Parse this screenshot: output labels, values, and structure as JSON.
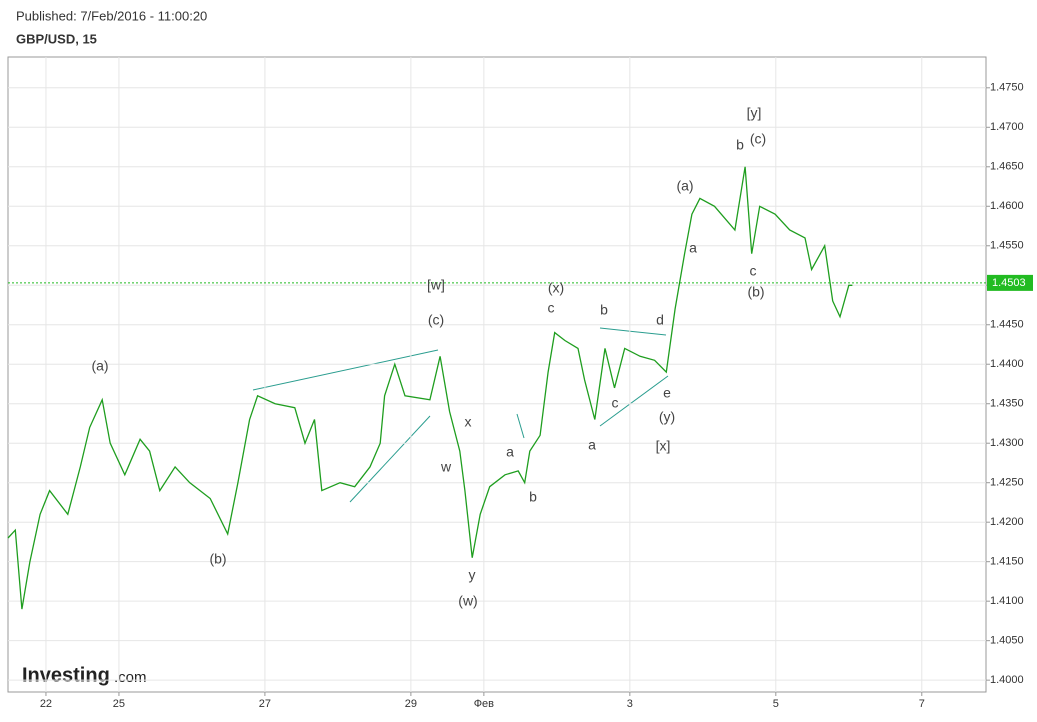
{
  "header": {
    "published": "Published: 7/Feb/2016 - 11:00:20",
    "symbol": "GBP/USD, 15"
  },
  "logo": {
    "brand": "Investing",
    "suffix": ".com"
  },
  "chart_data": {
    "type": "line",
    "color": "#1f9e1f",
    "x": [
      -0.52,
      -0.42,
      -0.33,
      -0.22,
      -0.08,
      0.05,
      0.3,
      0.47,
      0.6,
      0.77,
      0.88,
      1.08,
      1.29,
      1.42,
      1.56,
      1.77,
      1.97,
      2.25,
      2.49,
      2.63,
      2.79,
      2.9,
      3.14,
      3.41,
      3.55,
      3.68,
      3.78,
      4.03,
      4.23,
      4.44,
      4.58,
      4.64,
      4.78,
      4.92,
      5.26,
      5.4,
      5.53,
      5.67,
      5.74,
      5.84,
      5.95,
      6.08,
      6.29,
      6.47,
      6.56,
      6.63,
      6.77,
      6.88,
      6.97,
      7.11,
      7.29,
      7.38,
      7.52,
      7.66,
      7.79,
      7.93,
      8.14,
      8.34,
      8.5,
      8.62,
      8.75,
      8.85,
      8.96,
      9.16,
      9.44,
      9.58,
      9.67,
      9.78,
      9.99,
      10.19,
      10.4,
      10.49,
      10.67,
      10.78,
      10.88,
      11.0,
      11.05
    ],
    "values": [
      1.418,
      1.419,
      1.409,
      1.415,
      1.421,
      1.424,
      1.421,
      1.427,
      1.432,
      1.4355,
      1.43,
      1.426,
      1.4305,
      1.429,
      1.424,
      1.427,
      1.425,
      1.423,
      1.4185,
      1.425,
      1.433,
      1.436,
      1.435,
      1.4345,
      1.43,
      1.433,
      1.424,
      1.425,
      1.4245,
      1.427,
      1.43,
      1.436,
      1.44,
      1.436,
      1.4355,
      1.441,
      1.434,
      1.429,
      1.424,
      1.4155,
      1.421,
      1.4245,
      1.426,
      1.4265,
      1.425,
      1.429,
      1.431,
      1.439,
      1.444,
      1.443,
      1.442,
      1.438,
      1.433,
      1.442,
      1.437,
      1.442,
      1.441,
      1.4405,
      1.439,
      1.447,
      1.454,
      1.459,
      1.461,
      1.46,
      1.457,
      1.465,
      1.454,
      1.46,
      1.459,
      1.457,
      1.456,
      1.452,
      1.455,
      1.448,
      1.446,
      1.45,
      1.45
    ],
    "xlim": [
      -0.52,
      12.88
    ],
    "xticks": [
      {
        "value": 0,
        "label": "22"
      },
      {
        "value": 1,
        "label": "25"
      },
      {
        "value": 3,
        "label": "27"
      },
      {
        "value": 5,
        "label": "29"
      },
      {
        "value": 6,
        "label": "Фев"
      },
      {
        "value": 8,
        "label": "3"
      },
      {
        "value": 10,
        "label": "5"
      },
      {
        "value": 12,
        "label": "7"
      }
    ],
    "ylim": [
      1.3985,
      1.4789
    ],
    "yticks": [
      {
        "value": 1.4,
        "label": "1.4000"
      },
      {
        "value": 1.405,
        "label": "1.4050"
      },
      {
        "value": 1.41,
        "label": "1.4100"
      },
      {
        "value": 1.415,
        "label": "1.4150"
      },
      {
        "value": 1.42,
        "label": "1.4200"
      },
      {
        "value": 1.425,
        "label": "1.4250"
      },
      {
        "value": 1.43,
        "label": "1.4300"
      },
      {
        "value": 1.435,
        "label": "1.4350"
      },
      {
        "value": 1.44,
        "label": "1.4400"
      },
      {
        "value": 1.445,
        "label": "1.4450"
      },
      {
        "value": 1.45,
        "label": "1.4500"
      },
      {
        "value": 1.455,
        "label": "1.4550"
      },
      {
        "value": 1.46,
        "label": "1.4600"
      },
      {
        "value": 1.465,
        "label": "1.4650"
      },
      {
        "value": 1.47,
        "label": "1.4700"
      },
      {
        "value": 1.475,
        "label": "1.4750"
      }
    ],
    "grid": true,
    "last_value": 1.4503,
    "annotations": [
      "(a)",
      "(b)",
      "[w]",
      "(c)",
      "x",
      "w",
      "y",
      "(w)",
      "a",
      "b",
      "(x)",
      "c",
      "b",
      "a",
      "c",
      "d",
      "e",
      "(y)",
      "[x]",
      "(a)",
      "a",
      "b",
      "[y]",
      "(c)",
      "c",
      "(b)"
    ]
  }
}
